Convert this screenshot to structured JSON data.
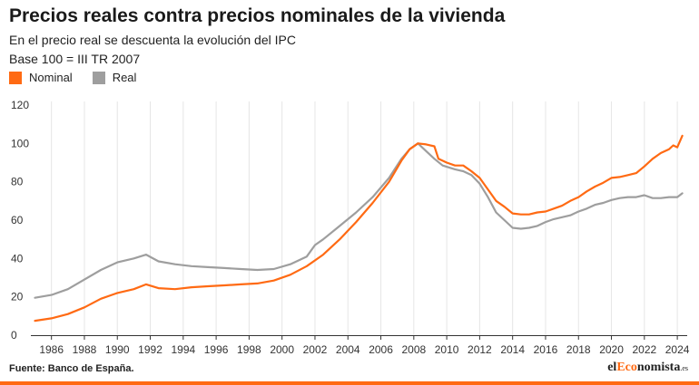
{
  "header": {
    "title": "Precios reales contra precios nominales de la vivienda",
    "subtitle1": "En el precio real se descuenta la evolución del IPC",
    "subtitle2": "Base 100 = III TR 2007"
  },
  "legend": [
    {
      "label": "Nominal",
      "color": "#ff6a13"
    },
    {
      "label": "Real",
      "color": "#9e9e9e"
    }
  ],
  "footer": {
    "source": "Fuente: Banco de España.",
    "brand_prefix": "el",
    "brand_accent": "Eco",
    "brand_suffix": "nomista",
    "brand_tld": ".es"
  },
  "chart_data": {
    "type": "line",
    "title": "Precios reales contra precios nominales de la vivienda",
    "xlabel": "",
    "ylabel": "",
    "ylim": [
      0,
      120
    ],
    "xlim": [
      1984.75,
      2024.6
    ],
    "y_ticks": [
      0,
      20,
      40,
      60,
      80,
      100,
      120
    ],
    "x_ticks": [
      1986,
      1988,
      1990,
      1992,
      1994,
      1996,
      1998,
      2000,
      2002,
      2004,
      2006,
      2008,
      2010,
      2012,
      2014,
      2016,
      2018,
      2020,
      2022,
      2024
    ],
    "grid": "vertical",
    "legend_position": "top-left",
    "series": [
      {
        "name": "Nominal",
        "color": "#ff6a13",
        "points": [
          [
            1985.0,
            7.5
          ],
          [
            1986.0,
            8.8
          ],
          [
            1987.0,
            11.0
          ],
          [
            1988.0,
            14.5
          ],
          [
            1989.0,
            19.0
          ],
          [
            1990.0,
            22.0
          ],
          [
            1991.0,
            24.0
          ],
          [
            1991.75,
            26.5
          ],
          [
            1992.5,
            24.5
          ],
          [
            1993.5,
            24.0
          ],
          [
            1994.5,
            25.0
          ],
          [
            1995.5,
            25.5
          ],
          [
            1996.5,
            26.0
          ],
          [
            1997.5,
            26.5
          ],
          [
            1998.5,
            27.0
          ],
          [
            1999.5,
            28.5
          ],
          [
            2000.5,
            31.5
          ],
          [
            2001.5,
            36.0
          ],
          [
            2002.5,
            42.0
          ],
          [
            2003.5,
            50.0
          ],
          [
            2004.5,
            59.0
          ],
          [
            2005.5,
            69.0
          ],
          [
            2006.5,
            80.0
          ],
          [
            2007.25,
            91.0
          ],
          [
            2007.75,
            97.0
          ],
          [
            2008.25,
            100.0
          ],
          [
            2008.75,
            99.5
          ],
          [
            2009.25,
            98.5
          ],
          [
            2009.5,
            92.0
          ],
          [
            2010.0,
            90.0
          ],
          [
            2010.5,
            88.5
          ],
          [
            2011.0,
            88.5
          ],
          [
            2011.5,
            85.5
          ],
          [
            2012.0,
            82.0
          ],
          [
            2012.5,
            76.0
          ],
          [
            2013.0,
            70.0
          ],
          [
            2013.5,
            67.0
          ],
          [
            2014.0,
            63.5
          ],
          [
            2014.5,
            63.0
          ],
          [
            2015.0,
            63.0
          ],
          [
            2015.5,
            64.0
          ],
          [
            2016.0,
            64.5
          ],
          [
            2016.5,
            66.0
          ],
          [
            2017.0,
            67.5
          ],
          [
            2017.5,
            70.0
          ],
          [
            2018.0,
            72.0
          ],
          [
            2018.5,
            75.0
          ],
          [
            2019.0,
            77.5
          ],
          [
            2019.5,
            79.5
          ],
          [
            2020.0,
            82.0
          ],
          [
            2020.5,
            82.5
          ],
          [
            2021.0,
            83.5
          ],
          [
            2021.5,
            84.5
          ],
          [
            2022.0,
            88.0
          ],
          [
            2022.5,
            92.0
          ],
          [
            2023.0,
            95.0
          ],
          [
            2023.5,
            97.0
          ],
          [
            2023.75,
            99.0
          ],
          [
            2024.0,
            98.0
          ],
          [
            2024.3,
            104.0
          ]
        ]
      },
      {
        "name": "Real",
        "color": "#9e9e9e",
        "points": [
          [
            1985.0,
            19.5
          ],
          [
            1986.0,
            21.0
          ],
          [
            1987.0,
            24.0
          ],
          [
            1988.0,
            29.0
          ],
          [
            1989.0,
            34.0
          ],
          [
            1990.0,
            38.0
          ],
          [
            1991.0,
            40.0
          ],
          [
            1991.75,
            42.0
          ],
          [
            1992.5,
            38.5
          ],
          [
            1993.5,
            37.0
          ],
          [
            1994.5,
            36.0
          ],
          [
            1995.5,
            35.5
          ],
          [
            1996.5,
            35.0
          ],
          [
            1997.5,
            34.5
          ],
          [
            1998.5,
            34.0
          ],
          [
            1999.5,
            34.5
          ],
          [
            2000.5,
            37.0
          ],
          [
            2001.5,
            41.0
          ],
          [
            2002.0,
            47.0
          ],
          [
            2002.5,
            50.0
          ],
          [
            2003.5,
            57.0
          ],
          [
            2004.5,
            64.0
          ],
          [
            2005.5,
            72.0
          ],
          [
            2006.5,
            82.0
          ],
          [
            2007.25,
            92.0
          ],
          [
            2007.75,
            97.0
          ],
          [
            2008.25,
            100.0
          ],
          [
            2008.75,
            96.0
          ],
          [
            2009.25,
            92.0
          ],
          [
            2009.75,
            88.5
          ],
          [
            2010.5,
            86.5
          ],
          [
            2011.0,
            85.5
          ],
          [
            2011.5,
            83.5
          ],
          [
            2012.0,
            79.0
          ],
          [
            2012.5,
            72.0
          ],
          [
            2013.0,
            64.0
          ],
          [
            2013.5,
            60.0
          ],
          [
            2014.0,
            56.0
          ],
          [
            2014.5,
            55.5
          ],
          [
            2015.0,
            56.0
          ],
          [
            2015.5,
            57.0
          ],
          [
            2016.0,
            59.0
          ],
          [
            2016.5,
            60.5
          ],
          [
            2017.0,
            61.5
          ],
          [
            2017.5,
            62.5
          ],
          [
            2018.0,
            64.5
          ],
          [
            2018.5,
            66.0
          ],
          [
            2019.0,
            68.0
          ],
          [
            2019.5,
            69.0
          ],
          [
            2020.0,
            70.5
          ],
          [
            2020.5,
            71.5
          ],
          [
            2021.0,
            72.0
          ],
          [
            2021.5,
            72.0
          ],
          [
            2022.0,
            73.0
          ],
          [
            2022.5,
            71.5
          ],
          [
            2023.0,
            71.5
          ],
          [
            2023.5,
            72.0
          ],
          [
            2024.0,
            72.0
          ],
          [
            2024.3,
            74.0
          ]
        ]
      }
    ]
  }
}
